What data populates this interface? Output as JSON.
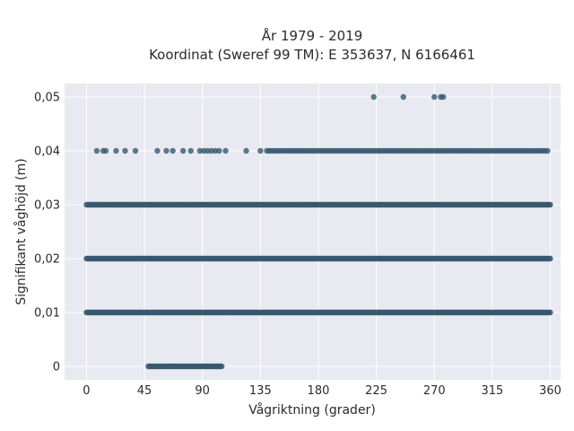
{
  "chart_data": {
    "type": "scatter",
    "title_line1": "År 1979 - 2019",
    "title_line2": "Koordinat (Sweref 99 TM): E 353637, N 6166461",
    "xlabel": "Vågriktning (grader)",
    "ylabel": "Signifikant våghöjd (m)",
    "xlim": [
      -17,
      368
    ],
    "ylim": [
      -0.0025,
      0.0525
    ],
    "x_ticks": [
      0,
      45,
      90,
      135,
      180,
      225,
      270,
      315,
      360
    ],
    "x_tick_labels": [
      "0",
      "45",
      "90",
      "135",
      "180",
      "225",
      "270",
      "315",
      "360"
    ],
    "y_ticks": [
      0,
      0.01,
      0.02,
      0.03,
      0.04,
      0.05
    ],
    "y_tick_labels": [
      "0",
      "0,01",
      "0,02",
      "0,03",
      "0,04",
      "0,05"
    ],
    "grid": true,
    "marker_color": "#36596f",
    "background_color": "#e8e9f1",
    "series": [
      {
        "segments": [
          {
            "y": 0.0,
            "x_from": 48,
            "x_to": 105,
            "step": 1
          },
          {
            "y": 0.01,
            "x_from": 0,
            "x_to": 360,
            "step": 1
          },
          {
            "y": 0.02,
            "x_from": 0,
            "x_to": 360,
            "step": 1
          },
          {
            "y": 0.03,
            "x_from": 0,
            "x_to": 360,
            "step": 1
          },
          {
            "y": 0.04,
            "x_from": 140,
            "x_to": 358,
            "step": 2
          }
        ],
        "points": [
          {
            "x": 8,
            "y": 0.04
          },
          {
            "x": 13,
            "y": 0.04
          },
          {
            "x": 15,
            "y": 0.04
          },
          {
            "x": 23,
            "y": 0.04
          },
          {
            "x": 30,
            "y": 0.04
          },
          {
            "x": 38,
            "y": 0.04
          },
          {
            "x": 55,
            "y": 0.04
          },
          {
            "x": 62,
            "y": 0.04
          },
          {
            "x": 67,
            "y": 0.04
          },
          {
            "x": 75,
            "y": 0.04
          },
          {
            "x": 81,
            "y": 0.04
          },
          {
            "x": 88,
            "y": 0.04
          },
          {
            "x": 91,
            "y": 0.04
          },
          {
            "x": 94,
            "y": 0.04
          },
          {
            "x": 97,
            "y": 0.04
          },
          {
            "x": 100,
            "y": 0.04
          },
          {
            "x": 103,
            "y": 0.04
          },
          {
            "x": 108,
            "y": 0.04
          },
          {
            "x": 124,
            "y": 0.04
          },
          {
            "x": 135,
            "y": 0.04
          },
          {
            "x": 223,
            "y": 0.05
          },
          {
            "x": 246,
            "y": 0.05
          },
          {
            "x": 270,
            "y": 0.05
          },
          {
            "x": 275,
            "y": 0.05
          },
          {
            "x": 277,
            "y": 0.05
          }
        ]
      }
    ]
  }
}
